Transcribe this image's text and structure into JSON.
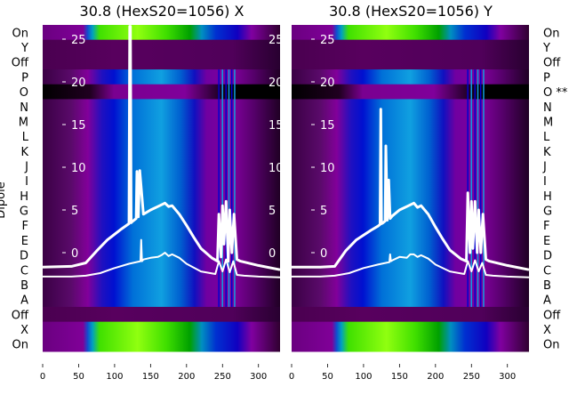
{
  "chart_data": [
    {
      "type": "heatmap",
      "title": "30.8 (HexS20=1056) X",
      "ylabel": "Dipole",
      "row_labels": [
        "On",
        "Y",
        "Off",
        "P",
        "O",
        "N",
        "M",
        "L",
        "K",
        "J",
        "I",
        "H",
        "G",
        "F",
        "E",
        "D",
        "C",
        "B",
        "A",
        "Off",
        "X",
        "On"
      ],
      "row_kinds": [
        "green",
        "dark",
        "dark",
        "normal",
        "black",
        "normal",
        "normal",
        "normal",
        "normal",
        "normal",
        "normal",
        "normal",
        "normal",
        "normal",
        "normal",
        "normal",
        "normal",
        "normal",
        "normal",
        "dark",
        "green",
        "green"
      ],
      "xticks": [
        0,
        50,
        100,
        150,
        200,
        250,
        300
      ],
      "xlim": [
        0,
        330
      ],
      "overlay_yticks": [
        0,
        5,
        10,
        15,
        20,
        25
      ],
      "overlay_ylim": [
        -11.5,
        26.5
      ],
      "lines": [
        {
          "name": "upper",
          "x": [
            0,
            40,
            60,
            75,
            90,
            110,
            120,
            121,
            122,
            123,
            124,
            130,
            131,
            133,
            135,
            140,
            150,
            160,
            170,
            175,
            180,
            190,
            200,
            210,
            220,
            235,
            243,
            245,
            248,
            250,
            252,
            255,
            258,
            260,
            263,
            266,
            270,
            275,
            300,
            330
          ],
          "y": [
            -1.7,
            -1.6,
            -1.2,
            0.2,
            1.5,
            2.8,
            3.4,
            26.5,
            26.5,
            3.5,
            3.6,
            4.0,
            9.5,
            4.2,
            9.6,
            4.5,
            5.0,
            5.4,
            5.8,
            5.4,
            5.5,
            4.5,
            3.2,
            1.8,
            0.5,
            -0.6,
            -1.0,
            4.5,
            -0.5,
            5.5,
            1,
            6,
            -1,
            5,
            0,
            4.5,
            -0.8,
            -1,
            -1.5,
            -2.0
          ]
        },
        {
          "name": "lower",
          "x": [
            0,
            40,
            60,
            80,
            100,
            120,
            136,
            137,
            138,
            140,
            150,
            160,
            165,
            170,
            175,
            180,
            190,
            200,
            220,
            240,
            245,
            250,
            255,
            260,
            265,
            270,
            280,
            300,
            330
          ],
          "y": [
            -2.8,
            -2.8,
            -2.7,
            -2.4,
            -1.8,
            -1.3,
            -1.0,
            1.5,
            -1.0,
            -0.8,
            -0.6,
            -0.5,
            -0.3,
            0.0,
            -0.4,
            -0.2,
            -0.6,
            -1.3,
            -2.2,
            -2.5,
            -1.0,
            -2.2,
            -0.8,
            -2.3,
            -1.0,
            -2.6,
            -2.7,
            -2.8,
            -2.9
          ]
        }
      ]
    },
    {
      "type": "heatmap",
      "title": "30.8 (HexS20=1056) Y",
      "row_labels": [
        "On",
        "Y",
        "Off",
        "P",
        "O **",
        "N",
        "M",
        "L",
        "K",
        "J",
        "I",
        "H",
        "G",
        "F",
        "E",
        "D",
        "C",
        "B",
        "A",
        "Off",
        "X",
        "On"
      ],
      "row_kinds": [
        "green",
        "dark",
        "dark",
        "normal",
        "black",
        "normal",
        "normal",
        "normal",
        "normal",
        "normal",
        "normal",
        "normal",
        "normal",
        "normal",
        "normal",
        "normal",
        "normal",
        "normal",
        "normal",
        "dark",
        "green",
        "green"
      ],
      "xticks": [
        0,
        50,
        100,
        150,
        200,
        250,
        300
      ],
      "xlim": [
        0,
        330
      ],
      "overlay_yticks": [
        0,
        5,
        10,
        15,
        20,
        25
      ],
      "overlay_ylim": [
        -11.5,
        26.5
      ],
      "lines": [
        {
          "name": "upper",
          "x": [
            0,
            40,
            60,
            75,
            90,
            110,
            120,
            123,
            124,
            125,
            127,
            130,
            131,
            133,
            135,
            137,
            140,
            150,
            160,
            170,
            175,
            180,
            190,
            200,
            210,
            220,
            235,
            243,
            245,
            248,
            250,
            252,
            255,
            258,
            260,
            263,
            266,
            270,
            275,
            300,
            330
          ],
          "y": [
            -1.7,
            -1.7,
            -1.6,
            0.2,
            1.5,
            2.6,
            3.1,
            3.3,
            16.8,
            3.4,
            3.5,
            3.7,
            12.5,
            3.8,
            8.5,
            4.0,
            4.3,
            5.0,
            5.4,
            5.8,
            5.3,
            5.5,
            4.5,
            3.0,
            1.6,
            0.3,
            -0.7,
            -1.0,
            7.0,
            0,
            6,
            0.5,
            6,
            0,
            5,
            0,
            4.5,
            -0.8,
            -1,
            -1.5,
            -2.0
          ]
        },
        {
          "name": "lower",
          "x": [
            0,
            40,
            60,
            80,
            100,
            120,
            136,
            137,
            138,
            140,
            150,
            160,
            165,
            170,
            175,
            180,
            190,
            200,
            220,
            240,
            245,
            250,
            255,
            260,
            265,
            270,
            280,
            300,
            330
          ],
          "y": [
            -2.8,
            -2.8,
            -2.7,
            -2.4,
            -1.8,
            -1.4,
            -1.1,
            -0.2,
            -1.0,
            -0.9,
            -0.5,
            -0.6,
            -0.2,
            -0.2,
            -0.5,
            -0.3,
            -0.7,
            -1.4,
            -2.2,
            -2.5,
            -1.0,
            -2.2,
            -0.9,
            -2.2,
            -1.2,
            -2.6,
            -2.7,
            -2.8,
            -2.9
          ]
        }
      ]
    }
  ]
}
